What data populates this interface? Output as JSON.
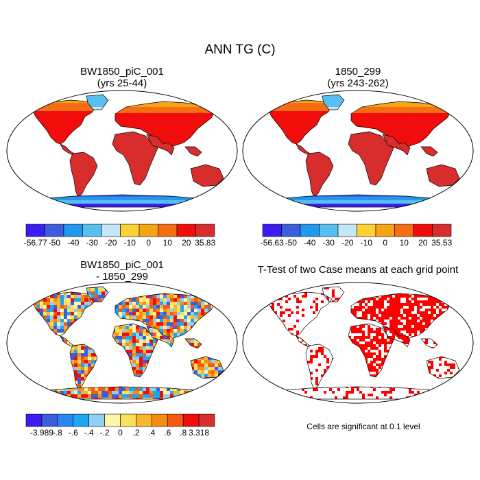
{
  "figure": {
    "title": "ANN TG (C)",
    "note": "Cells are significant at 0.1 level"
  },
  "panels": [
    {
      "title_line1": "BW1850_piC_001",
      "title_line2": "(yrs 25-44)",
      "colorbar": {
        "labels": [
          "-56.77",
          "-50",
          "-40",
          "-30",
          "-20",
          "-10",
          "0",
          "10",
          "20",
          "35.83"
        ],
        "colors": [
          "#3b1cf2",
          "#3b5de0",
          "#1f98f0",
          "#58bff0",
          "#c4e6f6",
          "#fbd234",
          "#f5a412",
          "#f66e14",
          "#f20d0d",
          "#d72d2d"
        ]
      }
    },
    {
      "title_line1": "1850_299",
      "title_line2": "(yrs 243-262)",
      "colorbar": {
        "labels": [
          "-56.63",
          "-50",
          "-40",
          "-30",
          "-20",
          "-10",
          "0",
          "10",
          "20",
          "35.53"
        ],
        "colors": [
          "#3b1cf2",
          "#3b5de0",
          "#1f98f0",
          "#58bff0",
          "#c4e6f6",
          "#fbd234",
          "#f5a412",
          "#f66e14",
          "#f20d0d",
          "#d72d2d"
        ]
      }
    },
    {
      "title_line1": "BW1850_piC_001",
      "title_line2": "- 1850_299",
      "colorbar": {
        "labels": [
          "-3.989",
          "-.8",
          "-.6",
          "-.4",
          "-.2",
          "0",
          ".2",
          ".4",
          ".6",
          ".8",
          "3.318"
        ],
        "colors": [
          "#3b1cf2",
          "#3b5de0",
          "#2b85f0",
          "#1fa6f0",
          "#8ed0f3",
          "#fff5a8",
          "#fbe05e",
          "#f8b62e",
          "#f58c14",
          "#f55a14",
          "#f20d0d",
          "#d72d2d"
        ]
      }
    },
    {
      "title_line1": "T-Test of two Case means at each grid point"
    }
  ]
}
